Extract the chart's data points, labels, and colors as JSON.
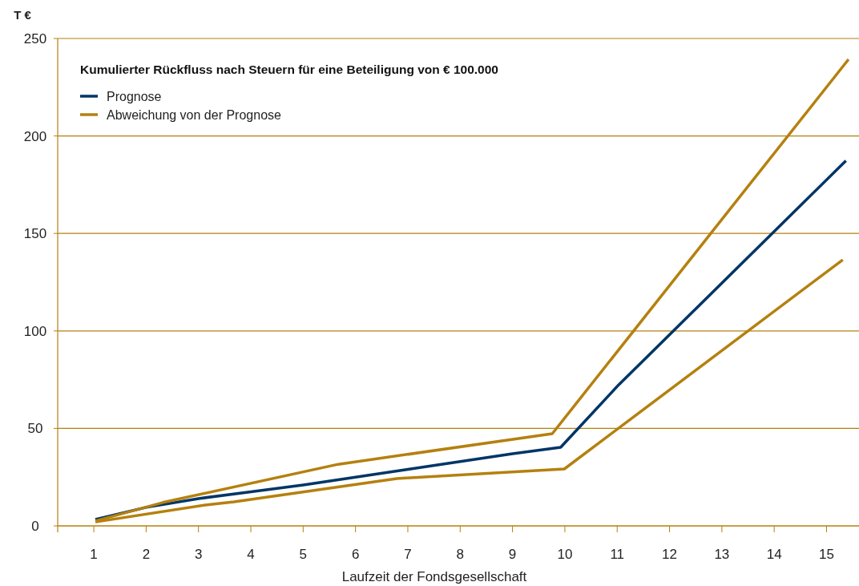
{
  "chart_data": {
    "type": "line",
    "title": "Kumulierter Rückfluss nach Steuern für eine Beteiligung von € 100.000",
    "xlabel": "Laufzeit der Fondsgesellschaft",
    "ylabel": "T €",
    "xlim": [
      0.31,
      15.62
    ],
    "xticks": [
      1,
      2,
      3,
      4,
      5,
      6,
      7,
      8,
      9,
      10,
      11,
      12,
      13,
      14,
      15
    ],
    "ylim": [
      0,
      250
    ],
    "yticks": [
      0,
      50,
      100,
      150,
      200,
      250
    ],
    "grid": "y",
    "legend": "top left",
    "line_style": "solid",
    "series": [
      {
        "name": "Prognose",
        "color": "#003566",
        "x": [
          1.03,
          2,
          3,
          4,
          5,
          6,
          7,
          8,
          9,
          9.92,
          11.03,
          15.37
        ],
        "values": [
          3.3,
          9.5,
          14,
          17.5,
          21,
          25,
          29,
          33,
          37,
          40.3,
          72.4,
          187.3
        ]
      },
      {
        "name": "Abweichung von der Prognose",
        "color": "#b5800f",
        "x": [
          1.03,
          2.32,
          5.67,
          9.76,
          15.42
        ],
        "values": [
          2.5,
          12,
          31.6,
          47.3,
          239.3
        ]
      },
      {
        "color": "#b5800f",
        "x": [
          1.03,
          3.13,
          3.68,
          6.79,
          9.99,
          15.31
        ],
        "values": [
          2,
          10.7,
          12.3,
          24.3,
          29.2,
          136.5
        ]
      }
    ]
  }
}
